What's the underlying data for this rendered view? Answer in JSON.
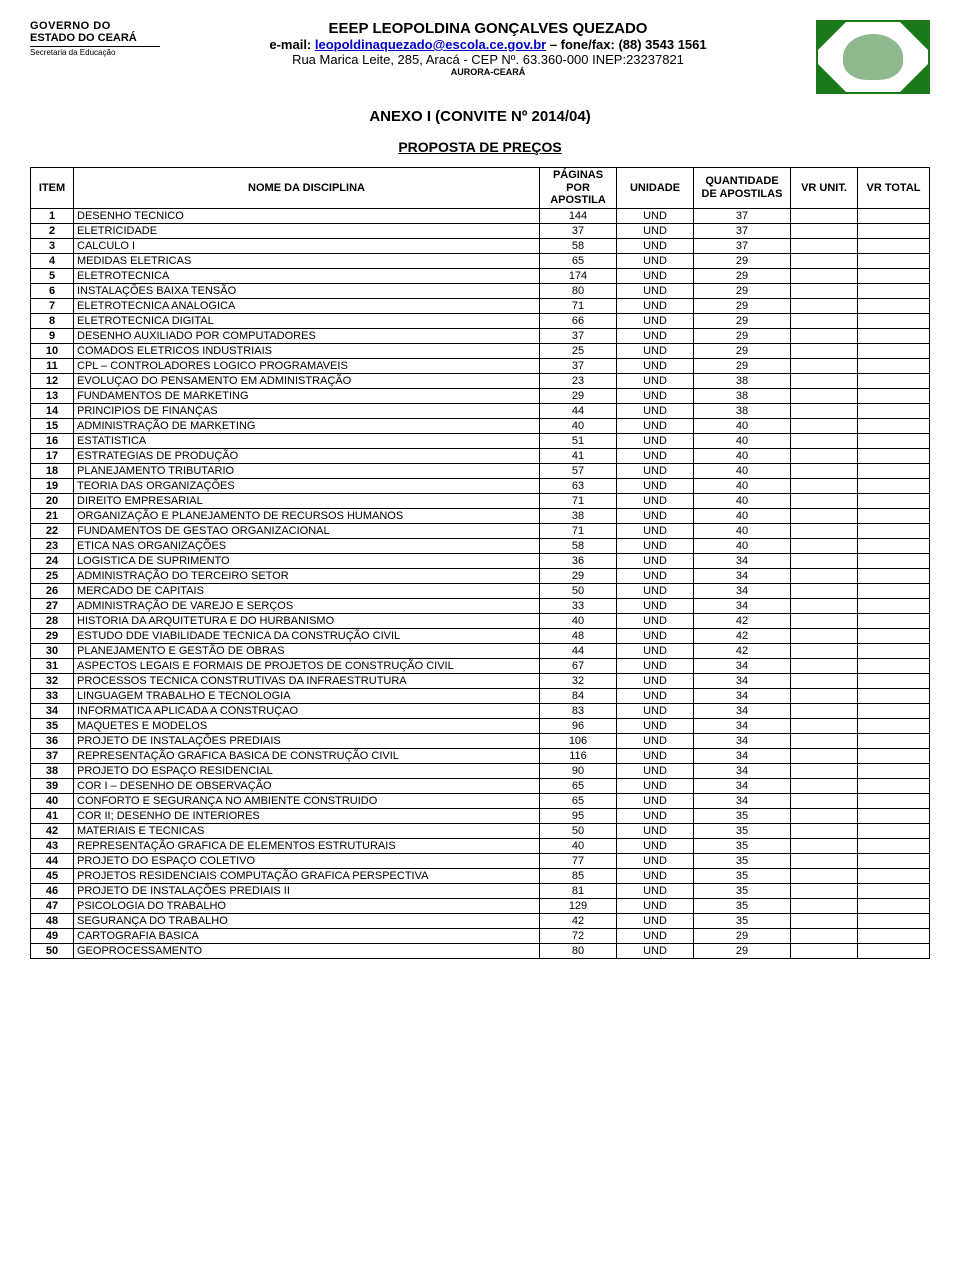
{
  "header": {
    "gov_line1": "GOVERNO DO",
    "gov_line2": "ESTADO DO CEARÁ",
    "gov_line3": "Secretaria da Educação",
    "school_name": "EEEP LEOPOLDINA GONÇALVES QUEZADO",
    "email_prefix": "e-mail: ",
    "email": "leopoldinaquezado@escola.ce.gov.br",
    "phone_suffix": " – fone/fax: (88) 3543 1561",
    "addr_line": "Rua Marica Leite, 285, Aracá - CEP Nº. 63.360-000   INEP:23237821",
    "aurora": "AURORA-CEARÁ"
  },
  "titles": {
    "anexo": "ANEXO I (CONVITE Nº 2014/04)",
    "proposta": "PROPOSTA DE PREÇOS"
  },
  "table": {
    "columns": {
      "item": "ITEM",
      "name": "NOME DA DISCIPLINA",
      "pages": "PÁGINAS POR APOSTILA",
      "unit": "UNIDADE",
      "qty": "QUANTIDADE DE APOSTILAS",
      "vunit": "VR UNIT.",
      "vtotal": "VR TOTAL"
    },
    "rows": [
      {
        "item": "1",
        "name": "DESENHO TECNICO",
        "pages": "144",
        "unit": "UND",
        "qty": "37"
      },
      {
        "item": "2",
        "name": "ELETRICIDADE",
        "pages": "37",
        "unit": "UND",
        "qty": "37"
      },
      {
        "item": "3",
        "name": "CALCULO I",
        "pages": "58",
        "unit": "UND",
        "qty": "37"
      },
      {
        "item": "4",
        "name": "MEDIDAS ELETRICAS",
        "pages": "65",
        "unit": "UND",
        "qty": "29"
      },
      {
        "item": "5",
        "name": "ELETROTECNICA",
        "pages": "174",
        "unit": "UND",
        "qty": "29"
      },
      {
        "item": "6",
        "name": "INSTALAÇÕES BAIXA TENSÃO",
        "pages": "80",
        "unit": "UND",
        "qty": "29"
      },
      {
        "item": "7",
        "name": "ELETROTECNICA ANALOGICA",
        "pages": "71",
        "unit": "UND",
        "qty": "29"
      },
      {
        "item": "8",
        "name": "ELETROTECNICA DIGITAL",
        "pages": "66",
        "unit": "UND",
        "qty": "29"
      },
      {
        "item": "9",
        "name": "DESENHO AUXILIADO POR COMPUTADORES",
        "pages": "37",
        "unit": "UND",
        "qty": "29"
      },
      {
        "item": "10",
        "name": "COMADOS ELETRICOS INDUSTRIAIS",
        "pages": "25",
        "unit": "UND",
        "qty": "29"
      },
      {
        "item": "11",
        "name": "CPL – CONTROLADORES LOGICO PROGRAMAVEIS",
        "pages": "37",
        "unit": "UND",
        "qty": "29"
      },
      {
        "item": "12",
        "name": "EVOLUÇAO DO PENSAMENTO EM ADMINISTRAÇÃO",
        "pages": "23",
        "unit": "UND",
        "qty": "38"
      },
      {
        "item": "13",
        "name": "FUNDAMENTOS DE MARKETING",
        "pages": "29",
        "unit": "UND",
        "qty": "38"
      },
      {
        "item": "14",
        "name": "PRINCIPIOS DE FINANÇAS",
        "pages": "44",
        "unit": "UND",
        "qty": "38"
      },
      {
        "item": "15",
        "name": "ADMINISTRAÇÃO DE MARKETING",
        "pages": "40",
        "unit": "UND",
        "qty": "40"
      },
      {
        "item": "16",
        "name": "ESTATISTICA",
        "pages": "51",
        "unit": "UND",
        "qty": "40"
      },
      {
        "item": "17",
        "name": "ESTRATEGIAS DE PRODUÇÃO",
        "pages": "41",
        "unit": "UND",
        "qty": "40"
      },
      {
        "item": "18",
        "name": "PLANEJAMENTO TRIBUTARIO",
        "pages": "57",
        "unit": "UND",
        "qty": "40"
      },
      {
        "item": "19",
        "name": "TEORIA DAS ORGANIZAÇÕES",
        "pages": "63",
        "unit": "UND",
        "qty": "40"
      },
      {
        "item": "20",
        "name": "DIREITO EMPRESARIAL",
        "pages": "71",
        "unit": "UND",
        "qty": "40"
      },
      {
        "item": "21",
        "name": "ORGANIZAÇÃO E PLANEJAMENTO DE RECURSOS HUMANOS",
        "pages": "38",
        "unit": "UND",
        "qty": "40"
      },
      {
        "item": "22",
        "name": "FUNDAMENTOS DE GESTAO ORGANIZACIONAL",
        "pages": "71",
        "unit": "UND",
        "qty": "40"
      },
      {
        "item": "23",
        "name": "ETICA NAS ORGANIZAÇÕES",
        "pages": "58",
        "unit": "UND",
        "qty": "40"
      },
      {
        "item": "24",
        "name": "LOGISTICA DE SUPRIMENTO",
        "pages": "36",
        "unit": "UND",
        "qty": "34"
      },
      {
        "item": "25",
        "name": "ADMINISTRAÇÃO DO TERCEIRO SETOR",
        "pages": "29",
        "unit": "UND",
        "qty": "34"
      },
      {
        "item": "26",
        "name": "MERCADO DE CAPITAIS",
        "pages": "50",
        "unit": "UND",
        "qty": "34"
      },
      {
        "item": "27",
        "name": "ADMINISTRAÇÃO DE VAREJO E SERÇOS",
        "pages": "33",
        "unit": "UND",
        "qty": "34"
      },
      {
        "item": "28",
        "name": "HISTORIA DA ARQUITETURA E DO HURBANISMO",
        "pages": "40",
        "unit": "UND",
        "qty": "42"
      },
      {
        "item": "29",
        "name": "ESTUDO DDE VIABILIDADE TECNICA DA CONSTRUÇÃO CIVIL",
        "pages": "48",
        "unit": "UND",
        "qty": "42"
      },
      {
        "item": "30",
        "name": "PLANEJAMENTO E GESTÃO DE OBRAS",
        "pages": "44",
        "unit": "UND",
        "qty": "42"
      },
      {
        "item": "31",
        "name": "ASPECTOS LEGAIS E FORMAIS DE PROJETOS DE CONSTRUÇÃO CIVIL",
        "pages": "67",
        "unit": "UND",
        "qty": "34"
      },
      {
        "item": "32",
        "name": "PROCESSOS TECNICA CONSTRUTIVAS DA INFRAESTRUTURA",
        "pages": "32",
        "unit": "UND",
        "qty": "34"
      },
      {
        "item": "33",
        "name": "LINGUAGEM TRABALHO E TECNOLOGIA",
        "pages": "84",
        "unit": "UND",
        "qty": "34"
      },
      {
        "item": "34",
        "name": "INFORMATICA APLICADA A CONSTRUÇAO",
        "pages": "83",
        "unit": "UND",
        "qty": "34"
      },
      {
        "item": "35",
        "name": "MAQUETES E MODELOS",
        "pages": "96",
        "unit": "UND",
        "qty": "34"
      },
      {
        "item": "36",
        "name": "PROJETO DE INSTALAÇÕES PREDIAIS",
        "pages": "106",
        "unit": "UND",
        "qty": "34"
      },
      {
        "item": "37",
        "name": "REPRESENTAÇÃO GRAFICA BASICA DE CONSTRUÇÃO CIVIL",
        "pages": "116",
        "unit": "UND",
        "qty": "34"
      },
      {
        "item": "38",
        "name": "PROJETO DO ESPAÇO RESIDENCIAL",
        "pages": "90",
        "unit": "UND",
        "qty": "34"
      },
      {
        "item": "39",
        "name": "COR I – DESENHO DE OBSERVAÇÃO",
        "pages": "65",
        "unit": "UND",
        "qty": "34"
      },
      {
        "item": "40",
        "name": "CONFORTO E SEGURANÇA NO AMBIENTE CONSTRUIDO",
        "pages": "65",
        "unit": "UND",
        "qty": "34"
      },
      {
        "item": "41",
        "name": "COR II; DESENHO DE INTERIORES",
        "pages": "95",
        "unit": "UND",
        "qty": "35"
      },
      {
        "item": "42",
        "name": "MATERIAIS E TECNICAS",
        "pages": "50",
        "unit": "UND",
        "qty": "35"
      },
      {
        "item": "43",
        "name": "REPRESENTAÇÃO GRAFICA DE ELEMENTOS ESTRUTURAIS",
        "pages": "40",
        "unit": "UND",
        "qty": "35"
      },
      {
        "item": "44",
        "name": "PROJETO DO ESPAÇO COLETIVO",
        "pages": "77",
        "unit": "UND",
        "qty": "35"
      },
      {
        "item": "45",
        "name": "PROJETOS RESIDENCIAIS COMPUTAÇÃO GRAFICA PERSPECTIVA",
        "pages": "85",
        "unit": "UND",
        "qty": "35"
      },
      {
        "item": "46",
        "name": "PROJETO DE INSTALAÇÕES PREDIAIS II",
        "pages": "81",
        "unit": "UND",
        "qty": "35"
      },
      {
        "item": "47",
        "name": "PSICOLOGIA DO TRABALHO",
        "pages": "129",
        "unit": "UND",
        "qty": "35"
      },
      {
        "item": "48",
        "name": "SEGURANÇA DO TRABALHO",
        "pages": "42",
        "unit": "UND",
        "qty": "35"
      },
      {
        "item": "49",
        "name": "CARTOGRAFIA BASICA",
        "pages": "72",
        "unit": "UND",
        "qty": "29"
      },
      {
        "item": "50",
        "name": "GEOPROCESSAMENTO",
        "pages": "80",
        "unit": "UND",
        "qty": "29"
      }
    ]
  }
}
